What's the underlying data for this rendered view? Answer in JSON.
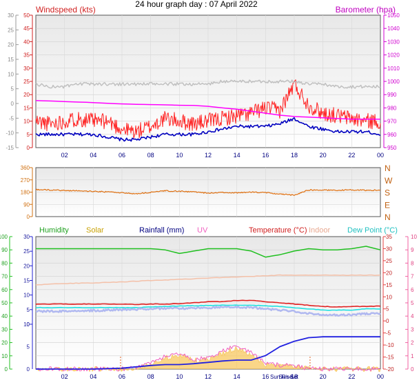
{
  "title": "24 hour graph day : 07 April 2022",
  "chart_data": [
    {
      "type": "line",
      "name": "wind-baro",
      "labels": {
        "wind": "Windspeed (kts)",
        "baro": "Barometer (hpa)"
      },
      "x_ticks": [
        "02",
        "04",
        "06",
        "08",
        "10",
        "12",
        "14",
        "16",
        "18",
        "20",
        "22",
        "00"
      ],
      "outer_left_ticks": [
        "30",
        "25",
        "20",
        "15",
        "10",
        "5",
        "0",
        "-5",
        "-10",
        "-15"
      ],
      "wind_ticks": [
        "50",
        "45",
        "40",
        "35",
        "30",
        "25",
        "20",
        "15",
        "10",
        "5",
        "0"
      ],
      "baro_ticks": [
        "1050",
        "1040",
        "1030",
        "1020",
        "1010",
        "1000",
        "990",
        "980",
        "970",
        "960",
        "950"
      ],
      "wind_ylim": [
        0,
        50
      ],
      "baro_ylim": [
        950,
        1050
      ],
      "x_hours": [
        0,
        1,
        2,
        3,
        4,
        5,
        6,
        7,
        8,
        9,
        10,
        11,
        12,
        13,
        14,
        15,
        16,
        17,
        18,
        19,
        20,
        21,
        22,
        23,
        24
      ],
      "series": [
        {
          "key": "gust",
          "color": "#ff2020",
          "values": [
            10,
            9,
            10,
            11,
            10,
            10,
            7,
            6,
            8,
            11,
            10,
            9,
            10,
            11,
            12,
            13,
            15,
            14,
            24,
            16,
            13,
            12,
            11,
            10,
            10
          ]
        },
        {
          "key": "avg",
          "color": "#0000c0",
          "values": [
            5,
            5,
            5,
            5,
            5,
            4,
            3,
            3,
            4,
            5,
            5,
            5,
            6,
            7,
            8,
            8,
            8,
            9,
            11,
            8,
            7,
            6,
            6,
            6,
            5
          ]
        },
        {
          "key": "avg_grey",
          "color": "#c0c0c0",
          "values": [
            24,
            23,
            23,
            24,
            24,
            24,
            24,
            24,
            24,
            24,
            24,
            24,
            24,
            25,
            25,
            25,
            25,
            25,
            25,
            24,
            24,
            23,
            23,
            23,
            23
          ]
        },
        {
          "key": "baro",
          "color": "#ff00ff",
          "values": [
            985.5,
            985.2,
            984.8,
            984.4,
            984,
            983.5,
            983,
            982.7,
            982.5,
            982.3,
            982,
            981.8,
            981.2,
            980,
            979,
            977.5,
            976,
            974.5,
            973.5,
            973,
            972.5,
            972,
            971.5,
            971.5,
            971.5
          ]
        }
      ]
    },
    {
      "type": "line",
      "name": "wind-direction",
      "left_ticks": [
        "360",
        "270",
        "180",
        "90",
        "0"
      ],
      "right_ticks": [
        "N",
        "W",
        "S",
        "E",
        "N"
      ],
      "ylim": [
        0,
        360
      ],
      "x_hours": [
        0,
        1,
        2,
        3,
        4,
        5,
        6,
        7,
        8,
        9,
        10,
        11,
        12,
        13,
        14,
        15,
        16,
        17,
        18,
        19,
        20,
        21,
        22,
        23,
        24
      ],
      "series": [
        {
          "key": "direction",
          "color": "#e07010",
          "values": [
            198,
            196,
            192,
            190,
            185,
            182,
            175,
            168,
            178,
            190,
            186,
            182,
            172,
            178,
            175,
            180,
            176,
            165,
            158,
            196,
            195,
            194,
            196,
            194,
            194
          ]
        }
      ]
    },
    {
      "type": "line",
      "name": "weather",
      "labels": {
        "humidity": "Humidity",
        "solar": "Solar",
        "rain": "Rainfall (mm)",
        "uv": "UV",
        "temp": "Temperature (°C)",
        "indoor": "Indoor",
        "dew": "Dew Point (°C)"
      },
      "humidity_ticks": [
        "100",
        "90",
        "80",
        "70",
        "60",
        "50",
        "40",
        "30",
        "20",
        "10",
        "0"
      ],
      "solar_ticks": [
        "30",
        "25",
        "20",
        "15",
        "10",
        "5",
        "0"
      ],
      "rain_ticks": [
        "10",
        "5",
        "0"
      ],
      "temp_ticks": [
        "35",
        "30",
        "25",
        "20",
        "15",
        "10",
        "5",
        "0",
        "-5",
        "-10",
        "-15",
        "-20"
      ],
      "uv_ticks": [
        "10",
        "9",
        "8",
        "7",
        "6",
        "5",
        "4",
        "3",
        "2",
        "1",
        "0"
      ],
      "x_ticks": [
        "02",
        "04",
        "06",
        "08",
        "10",
        "12",
        "14",
        "16",
        "18",
        "20",
        "22",
        "00"
      ],
      "sun_labels": [
        "Sun Rise",
        "Sun Set"
      ],
      "temp_ylim": [
        -20,
        35
      ],
      "rain_ylim": [
        0,
        10
      ],
      "x_hours": [
        0,
        1,
        2,
        3,
        4,
        5,
        6,
        7,
        8,
        9,
        10,
        11,
        12,
        13,
        14,
        15,
        16,
        17,
        18,
        19,
        20,
        21,
        22,
        23,
        24
      ],
      "series": [
        {
          "key": "humidity",
          "color": "#20c020",
          "axis": "temp",
          "values": [
            30,
            30,
            30,
            30,
            30,
            30,
            30,
            30,
            30,
            29.5,
            28,
            29,
            30,
            30,
            30,
            29,
            26.5,
            27.5,
            29,
            30,
            29.5,
            29.5,
            30,
            31,
            29.5
          ]
        },
        {
          "key": "indoor",
          "color": "#f4c0a8",
          "axis": "temp",
          "values": [
            15,
            15.3,
            15.5,
            15.7,
            15.8,
            16,
            16.2,
            16.5,
            16.8,
            17,
            17.3,
            17.5,
            17.8,
            18,
            18.2,
            18.5,
            18.7,
            19,
            19,
            19,
            19,
            19,
            19,
            19,
            19
          ]
        },
        {
          "key": "temp",
          "color": "#e02020",
          "axis": "temp",
          "values": [
            7,
            7,
            7,
            7,
            7,
            7,
            7,
            6.8,
            7,
            7,
            7.2,
            7.5,
            8,
            8,
            8.5,
            8.5,
            8,
            7.5,
            7,
            6.5,
            6,
            5.8,
            6,
            6,
            6.2
          ]
        },
        {
          "key": "dew",
          "color": "#20e0e0",
          "axis": "temp",
          "values": [
            5.5,
            5.5,
            5.5,
            5.5,
            5.5,
            5.5,
            5.5,
            5.5,
            5.8,
            6,
            6.2,
            6.3,
            6.4,
            6.5,
            6.5,
            6.5,
            6.3,
            6,
            5.5,
            5,
            4.5,
            4.5,
            4.5,
            5,
            5
          ]
        },
        {
          "key": "dew_shade",
          "color": "#b0b8f0",
          "axis": "temp",
          "values": [
            4,
            4,
            4,
            4.2,
            4.3,
            4.5,
            4.6,
            4.8,
            5,
            5.2,
            5.2,
            5.3,
            5.5,
            5.7,
            5.8,
            5.5,
            5,
            4.5,
            4,
            3,
            2.5,
            2.5,
            2.6,
            3,
            3
          ]
        },
        {
          "key": "solar",
          "color": "#f8c860",
          "axis": "rain",
          "fill": true,
          "values": [
            0,
            0,
            0,
            0,
            0,
            0,
            0,
            0.2,
            1,
            2.5,
            3,
            2,
            2,
            3.5,
            4.5,
            3,
            1,
            0.8,
            0.6,
            0.1,
            0,
            0,
            0,
            0,
            0
          ]
        },
        {
          "key": "uv",
          "color": "#f060c0",
          "axis": "rain",
          "values": [
            0,
            0,
            0,
            0,
            0,
            0,
            0,
            0.3,
            1.2,
            3,
            3.4,
            2.2,
            2.4,
            4,
            5.5,
            3.6,
            1.2,
            0.9,
            0.7,
            0.1,
            0,
            0,
            0,
            0,
            0
          ]
        },
        {
          "key": "rain",
          "color": "#2020e0",
          "axis": "rain",
          "values": [
            0,
            0,
            0,
            0,
            0,
            0.1,
            0.2,
            0.5,
            0.8,
            1,
            1,
            1.2,
            1.5,
            1.8,
            2,
            2,
            3,
            5,
            6.2,
            7,
            7.2,
            7.2,
            7.2,
            7.2,
            7.2
          ]
        }
      ]
    }
  ]
}
